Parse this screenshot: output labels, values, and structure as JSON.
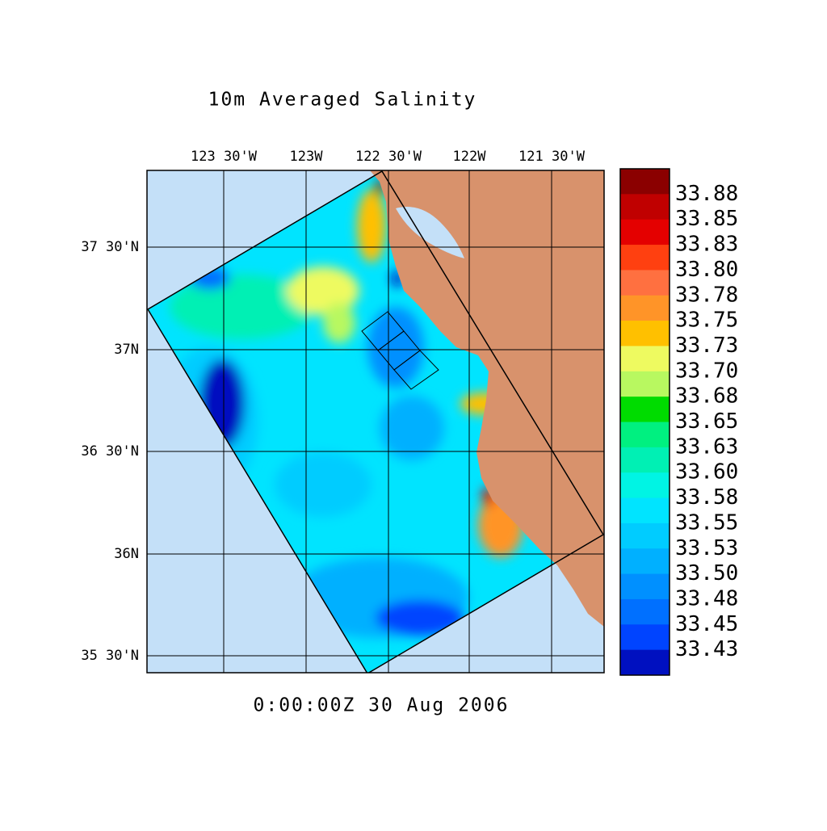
{
  "title": "10m Averaged Salinity",
  "timestamp": "0:00:00Z  30 Aug 2006",
  "map": {
    "lon_labels": [
      "123 30'W",
      "123W",
      "122 30'W",
      "122W",
      "121 30'W"
    ],
    "lat_labels": [
      "37 30'N",
      "37N",
      "36 30'N",
      "36N",
      "35 30'N"
    ]
  },
  "colorbar": {
    "labels": [
      "33.88",
      "33.85",
      "33.83",
      "33.80",
      "33.78",
      "33.75",
      "33.73",
      "33.70",
      "33.68",
      "33.65",
      "33.63",
      "33.60",
      "33.58",
      "33.55",
      "33.53",
      "33.50",
      "33.48",
      "33.45",
      "33.43"
    ],
    "colors": [
      "#8b0000",
      "#c00000",
      "#e40000",
      "#ff4010",
      "#ff7040",
      "#ff9428",
      "#ffc000",
      "#eefa60",
      "#b8f860",
      "#00dc00",
      "#00f080",
      "#00f0b4",
      "#00f4e4",
      "#00e4ff",
      "#00ccff",
      "#00b0ff",
      "#0090ff",
      "#0070ff",
      "#0044ff",
      "#0010c0"
    ]
  }
}
